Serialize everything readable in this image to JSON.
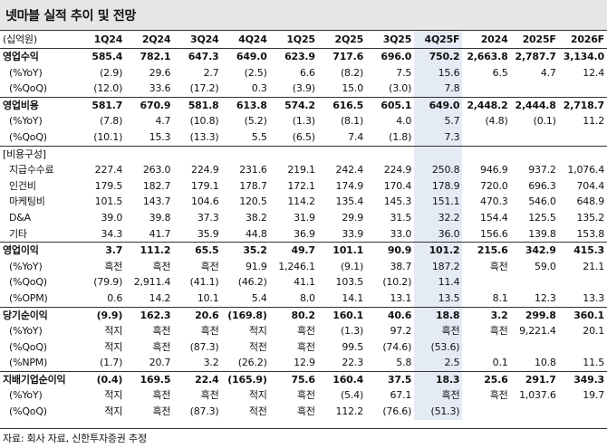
{
  "title": "넷마블 실적 추이 및 전망",
  "header": {
    "unit_label": "(십억원)",
    "columns": [
      "1Q24",
      "2Q24",
      "3Q24",
      "4Q24",
      "1Q25",
      "2Q25",
      "3Q25",
      "4Q25F",
      "2024",
      "2025F",
      "2026F"
    ]
  },
  "rows": [
    {
      "label": "영업수익",
      "type": "main",
      "group_first": true,
      "values": [
        "585.4",
        "782.1",
        "647.3",
        "649.0",
        "623.9",
        "717.6",
        "696.0",
        "750.2",
        "2,663.8",
        "2,787.7",
        "3,134.0"
      ]
    },
    {
      "label": "(%YoY)",
      "type": "sub",
      "values": [
        "(2.9)",
        "29.6",
        "2.7",
        "(2.5)",
        "6.6",
        "(8.2)",
        "7.5",
        "15.6",
        "6.5",
        "4.7",
        "12.4"
      ]
    },
    {
      "label": "(%QoQ)",
      "type": "sub",
      "values": [
        "(12.0)",
        "33.6",
        "(17.2)",
        "0.3",
        "(3.9)",
        "15.0",
        "(3.0)",
        "7.8",
        "",
        "",
        ""
      ]
    },
    {
      "label": "영업비용",
      "type": "main",
      "group_first": true,
      "values": [
        "581.7",
        "670.9",
        "581.8",
        "613.8",
        "574.2",
        "616.5",
        "605.1",
        "649.0",
        "2,448.2",
        "2,444.8",
        "2,718.7"
      ]
    },
    {
      "label": "(%YoY)",
      "type": "sub",
      "values": [
        "(7.8)",
        "4.7",
        "(10.8)",
        "(5.2)",
        "(1.3)",
        "(8.1)",
        "4.0",
        "5.7",
        "(4.8)",
        "(0.1)",
        "11.2"
      ]
    },
    {
      "label": "(%QoQ)",
      "type": "sub",
      "values": [
        "(10.1)",
        "15.3",
        "(13.3)",
        "5.5",
        "(6.5)",
        "7.4",
        "(1.8)",
        "7.3",
        "",
        "",
        ""
      ]
    },
    {
      "label": "[비용구성]",
      "type": "plain",
      "group_first": true,
      "values": [
        "",
        "",
        "",
        "",
        "",
        "",
        "",
        "",
        "",
        "",
        ""
      ]
    },
    {
      "label": "지급수수료",
      "type": "item",
      "values": [
        "227.4",
        "263.0",
        "224.9",
        "231.6",
        "219.1",
        "242.4",
        "224.9",
        "250.8",
        "946.9",
        "937.2",
        "1,076.4"
      ]
    },
    {
      "label": "인건비",
      "type": "item",
      "values": [
        "179.5",
        "182.7",
        "179.1",
        "178.7",
        "172.1",
        "174.9",
        "170.4",
        "178.9",
        "720.0",
        "696.3",
        "704.4"
      ]
    },
    {
      "label": "마케팅비",
      "type": "item",
      "values": [
        "101.5",
        "143.7",
        "104.6",
        "120.5",
        "114.2",
        "135.4",
        "145.3",
        "151.1",
        "470.3",
        "546.0",
        "648.9"
      ]
    },
    {
      "label": "D&A",
      "type": "item",
      "values": [
        "39.0",
        "39.8",
        "37.3",
        "38.2",
        "31.9",
        "29.9",
        "31.5",
        "32.2",
        "154.4",
        "125.5",
        "135.2"
      ]
    },
    {
      "label": "기타",
      "type": "item",
      "values": [
        "34.3",
        "41.7",
        "35.9",
        "44.8",
        "36.9",
        "33.9",
        "33.0",
        "36.0",
        "156.6",
        "139.8",
        "153.8"
      ]
    },
    {
      "label": "영업이익",
      "type": "main",
      "group_first": true,
      "values": [
        "3.7",
        "111.2",
        "65.5",
        "35.2",
        "49.7",
        "101.1",
        "90.9",
        "101.2",
        "215.6",
        "342.9",
        "415.3"
      ]
    },
    {
      "label": "(%YoY)",
      "type": "sub",
      "values": [
        "흑전",
        "흑전",
        "흑전",
        "91.9",
        "1,246.1",
        "(9.1)",
        "38.7",
        "187.2",
        "흑전",
        "59.0",
        "21.1"
      ]
    },
    {
      "label": "(%QoQ)",
      "type": "sub",
      "values": [
        "(79.9)",
        "2,911.4",
        "(41.1)",
        "(46.2)",
        "41.1",
        "103.5",
        "(10.2)",
        "11.4",
        "",
        "",
        ""
      ]
    },
    {
      "label": "(%OPM)",
      "type": "sub",
      "values": [
        "0.6",
        "14.2",
        "10.1",
        "5.4",
        "8.0",
        "14.1",
        "13.1",
        "13.5",
        "8.1",
        "12.3",
        "13.3"
      ]
    },
    {
      "label": "당기순이익",
      "type": "main",
      "group_first": true,
      "values": [
        "(9.9)",
        "162.3",
        "20.6",
        "(169.8)",
        "80.2",
        "160.1",
        "40.6",
        "18.8",
        "3.2",
        "299.8",
        "360.1"
      ]
    },
    {
      "label": "(%YoY)",
      "type": "sub",
      "values": [
        "적지",
        "흑전",
        "흑전",
        "적지",
        "흑전",
        "(1.3)",
        "97.2",
        "흑전",
        "흑전",
        "9,221.4",
        "20.1"
      ]
    },
    {
      "label": "(%QoQ)",
      "type": "sub",
      "values": [
        "적지",
        "흑전",
        "(87.3)",
        "적전",
        "흑전",
        "99.5",
        "(74.6)",
        "(53.6)",
        "",
        "",
        ""
      ]
    },
    {
      "label": "(%NPM)",
      "type": "sub",
      "values": [
        "(1.7)",
        "20.7",
        "3.2",
        "(26.2)",
        "12.9",
        "22.3",
        "5.8",
        "2.5",
        "0.1",
        "10.8",
        "11.5"
      ]
    },
    {
      "label": "지배기업순이익",
      "type": "main",
      "group_first": true,
      "values": [
        "(0.4)",
        "169.5",
        "22.4",
        "(165.9)",
        "75.6",
        "160.4",
        "37.5",
        "18.3",
        "25.6",
        "291.7",
        "349.3"
      ]
    },
    {
      "label": "(%YoY)",
      "type": "sub",
      "values": [
        "적지",
        "흑전",
        "흑전",
        "적지",
        "흑전",
        "(5.4)",
        "67.1",
        "흑전",
        "흑전",
        "1,037.6",
        "19.7"
      ]
    },
    {
      "label": "(%QoQ)",
      "type": "sub",
      "values": [
        "적지",
        "흑전",
        "(87.3)",
        "적전",
        "흑전",
        "112.2",
        "(76.6)",
        "(51.3)",
        "",
        "",
        ""
      ]
    }
  ],
  "highlight_column_index": 7,
  "source": "자료: 회사 자료, 신한투자증권 추정"
}
